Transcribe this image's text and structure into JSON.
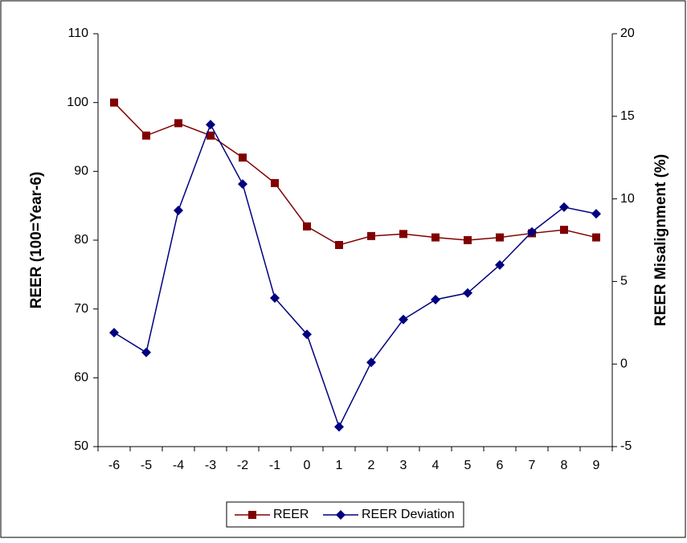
{
  "chart_data": {
    "type": "line",
    "categories": [
      "-6",
      "-5",
      "-4",
      "-3",
      "-2",
      "-1",
      "0",
      "1",
      "2",
      "3",
      "4",
      "5",
      "6",
      "7",
      "8",
      "9"
    ],
    "y_label": "REER (100=Year-6)",
    "y2_label": "REER Misalignment (%)",
    "ylim": [
      50,
      110
    ],
    "yticks": [
      50,
      60,
      70,
      80,
      90,
      100,
      110
    ],
    "y2lim": [
      -5,
      20
    ],
    "y2ticks": [
      -5,
      0,
      5,
      10,
      15,
      20
    ],
    "legend": "bottom",
    "series": [
      {
        "name": "REER",
        "color": "#800000",
        "marker": "square",
        "values": [
          100,
          95.2,
          97,
          95.2,
          92,
          88.3,
          82,
          79.3,
          80.6,
          80.9,
          80.4,
          80,
          80.4,
          81,
          81.5,
          80.4
        ]
      },
      {
        "name": "REER Deviation",
        "color": "#000080",
        "marker": "diamond",
        "axis": "y2",
        "values": [
          1.9,
          0.7,
          9.3,
          14.5,
          10.9,
          4.0,
          1.8,
          -3.8,
          0.1,
          2.7,
          3.9,
          4.3,
          6.0,
          8.0,
          9.5,
          9.1
        ]
      }
    ]
  }
}
